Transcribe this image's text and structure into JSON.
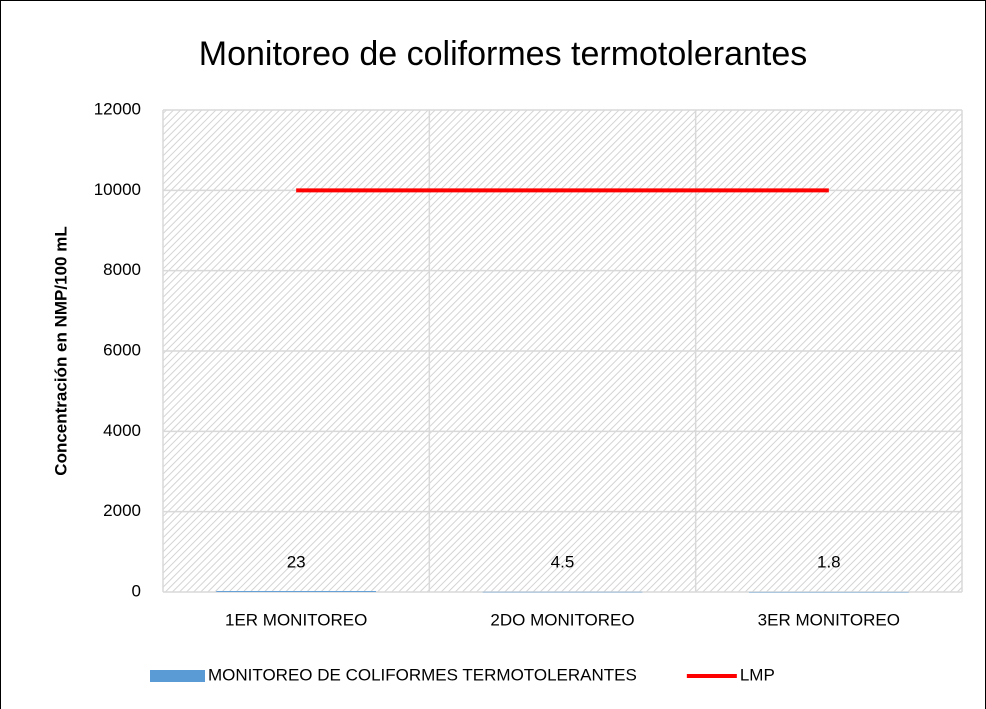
{
  "chart_data": {
    "type": "bar",
    "title": "Monitoreo de coliformes termotolerantes",
    "y_label": "Concentración en NMP/100 mL",
    "categories": [
      "1ER MONITOREO",
      "2DO MONITOREO",
      "3ER MONITOREO"
    ],
    "series": [
      {
        "name": "MONITOREO DE COLIFORMES TERMOTOLERANTES",
        "type": "bar",
        "color": "#5b9bd5",
        "values": [
          23,
          4.5,
          1.8
        ]
      },
      {
        "name": "LMP",
        "type": "line",
        "color": "#ff0000",
        "values": [
          10000,
          10000,
          10000
        ]
      }
    ],
    "ylim": [
      0,
      12000
    ],
    "yticks": [
      0,
      2000,
      4000,
      6000,
      8000,
      10000,
      12000
    ],
    "grid": true,
    "legend": "bottom"
  }
}
